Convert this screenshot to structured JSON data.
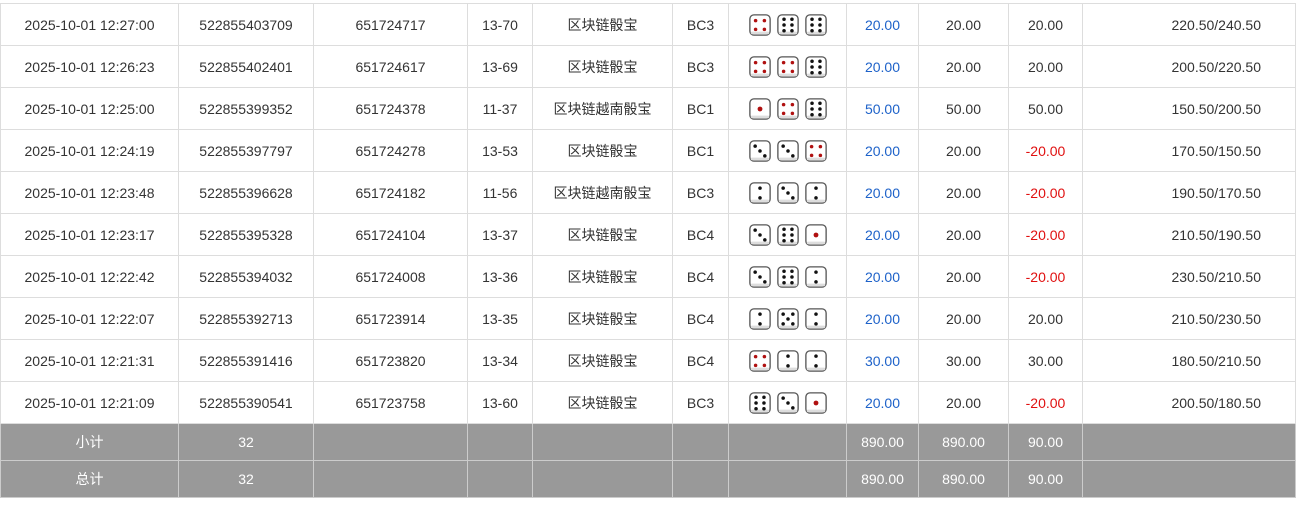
{
  "colors": {
    "positive": "#1e62c9",
    "negative": "#e01010",
    "footer": "#999999"
  },
  "rows": [
    {
      "time": "2025-10-01 12:27:00",
      "order": "522855403709",
      "issue": "651724717",
      "code": "13-70",
      "game": "区块链骰宝",
      "bet": "BC3",
      "dice": [
        4,
        6,
        6
      ],
      "amount": "20.00",
      "valid": "20.00",
      "win": "20.00",
      "balance": "220.50/240.50"
    },
    {
      "time": "2025-10-01 12:26:23",
      "order": "522855402401",
      "issue": "651724617",
      "code": "13-69",
      "game": "区块链骰宝",
      "bet": "BC3",
      "dice": [
        4,
        4,
        6
      ],
      "amount": "20.00",
      "valid": "20.00",
      "win": "20.00",
      "balance": "200.50/220.50"
    },
    {
      "time": "2025-10-01 12:25:00",
      "order": "522855399352",
      "issue": "651724378",
      "code": "11-37",
      "game": "区块链越南骰宝",
      "bet": "BC1",
      "dice": [
        1,
        4,
        6
      ],
      "amount": "50.00",
      "valid": "50.00",
      "win": "50.00",
      "balance": "150.50/200.50"
    },
    {
      "time": "2025-10-01 12:24:19",
      "order": "522855397797",
      "issue": "651724278",
      "code": "13-53",
      "game": "区块链骰宝",
      "bet": "BC1",
      "dice": [
        3,
        3,
        4
      ],
      "amount": "20.00",
      "valid": "20.00",
      "win": "-20.00",
      "balance": "170.50/150.50"
    },
    {
      "time": "2025-10-01 12:23:48",
      "order": "522855396628",
      "issue": "651724182",
      "code": "11-56",
      "game": "区块链越南骰宝",
      "bet": "BC3",
      "dice": [
        2,
        3,
        2
      ],
      "amount": "20.00",
      "valid": "20.00",
      "win": "-20.00",
      "balance": "190.50/170.50"
    },
    {
      "time": "2025-10-01 12:23:17",
      "order": "522855395328",
      "issue": "651724104",
      "code": "13-37",
      "game": "区块链骰宝",
      "bet": "BC4",
      "dice": [
        3,
        6,
        1
      ],
      "amount": "20.00",
      "valid": "20.00",
      "win": "-20.00",
      "balance": "210.50/190.50"
    },
    {
      "time": "2025-10-01 12:22:42",
      "order": "522855394032",
      "issue": "651724008",
      "code": "13-36",
      "game": "区块链骰宝",
      "bet": "BC4",
      "dice": [
        3,
        6,
        2
      ],
      "amount": "20.00",
      "valid": "20.00",
      "win": "-20.00",
      "balance": "230.50/210.50"
    },
    {
      "time": "2025-10-01 12:22:07",
      "order": "522855392713",
      "issue": "651723914",
      "code": "13-35",
      "game": "区块链骰宝",
      "bet": "BC4",
      "dice": [
        2,
        5,
        2
      ],
      "amount": "20.00",
      "valid": "20.00",
      "win": "20.00",
      "balance": "210.50/230.50"
    },
    {
      "time": "2025-10-01 12:21:31",
      "order": "522855391416",
      "issue": "651723820",
      "code": "13-34",
      "game": "区块链骰宝",
      "bet": "BC4",
      "dice": [
        4,
        2,
        2
      ],
      "amount": "30.00",
      "valid": "30.00",
      "win": "30.00",
      "balance": "180.50/210.50"
    },
    {
      "time": "2025-10-01 12:21:09",
      "order": "522855390541",
      "issue": "651723758",
      "code": "13-60",
      "game": "区块链骰宝",
      "bet": "BC3",
      "dice": [
        6,
        3,
        1
      ],
      "amount": "20.00",
      "valid": "20.00",
      "win": "-20.00",
      "balance": "200.50/180.50"
    }
  ],
  "footer": [
    {
      "label": "小计",
      "count": "32",
      "amount": "890.00",
      "valid": "890.00",
      "win": "90.00"
    },
    {
      "label": "总计",
      "count": "32",
      "amount": "890.00",
      "valid": "890.00",
      "win": "90.00"
    }
  ]
}
